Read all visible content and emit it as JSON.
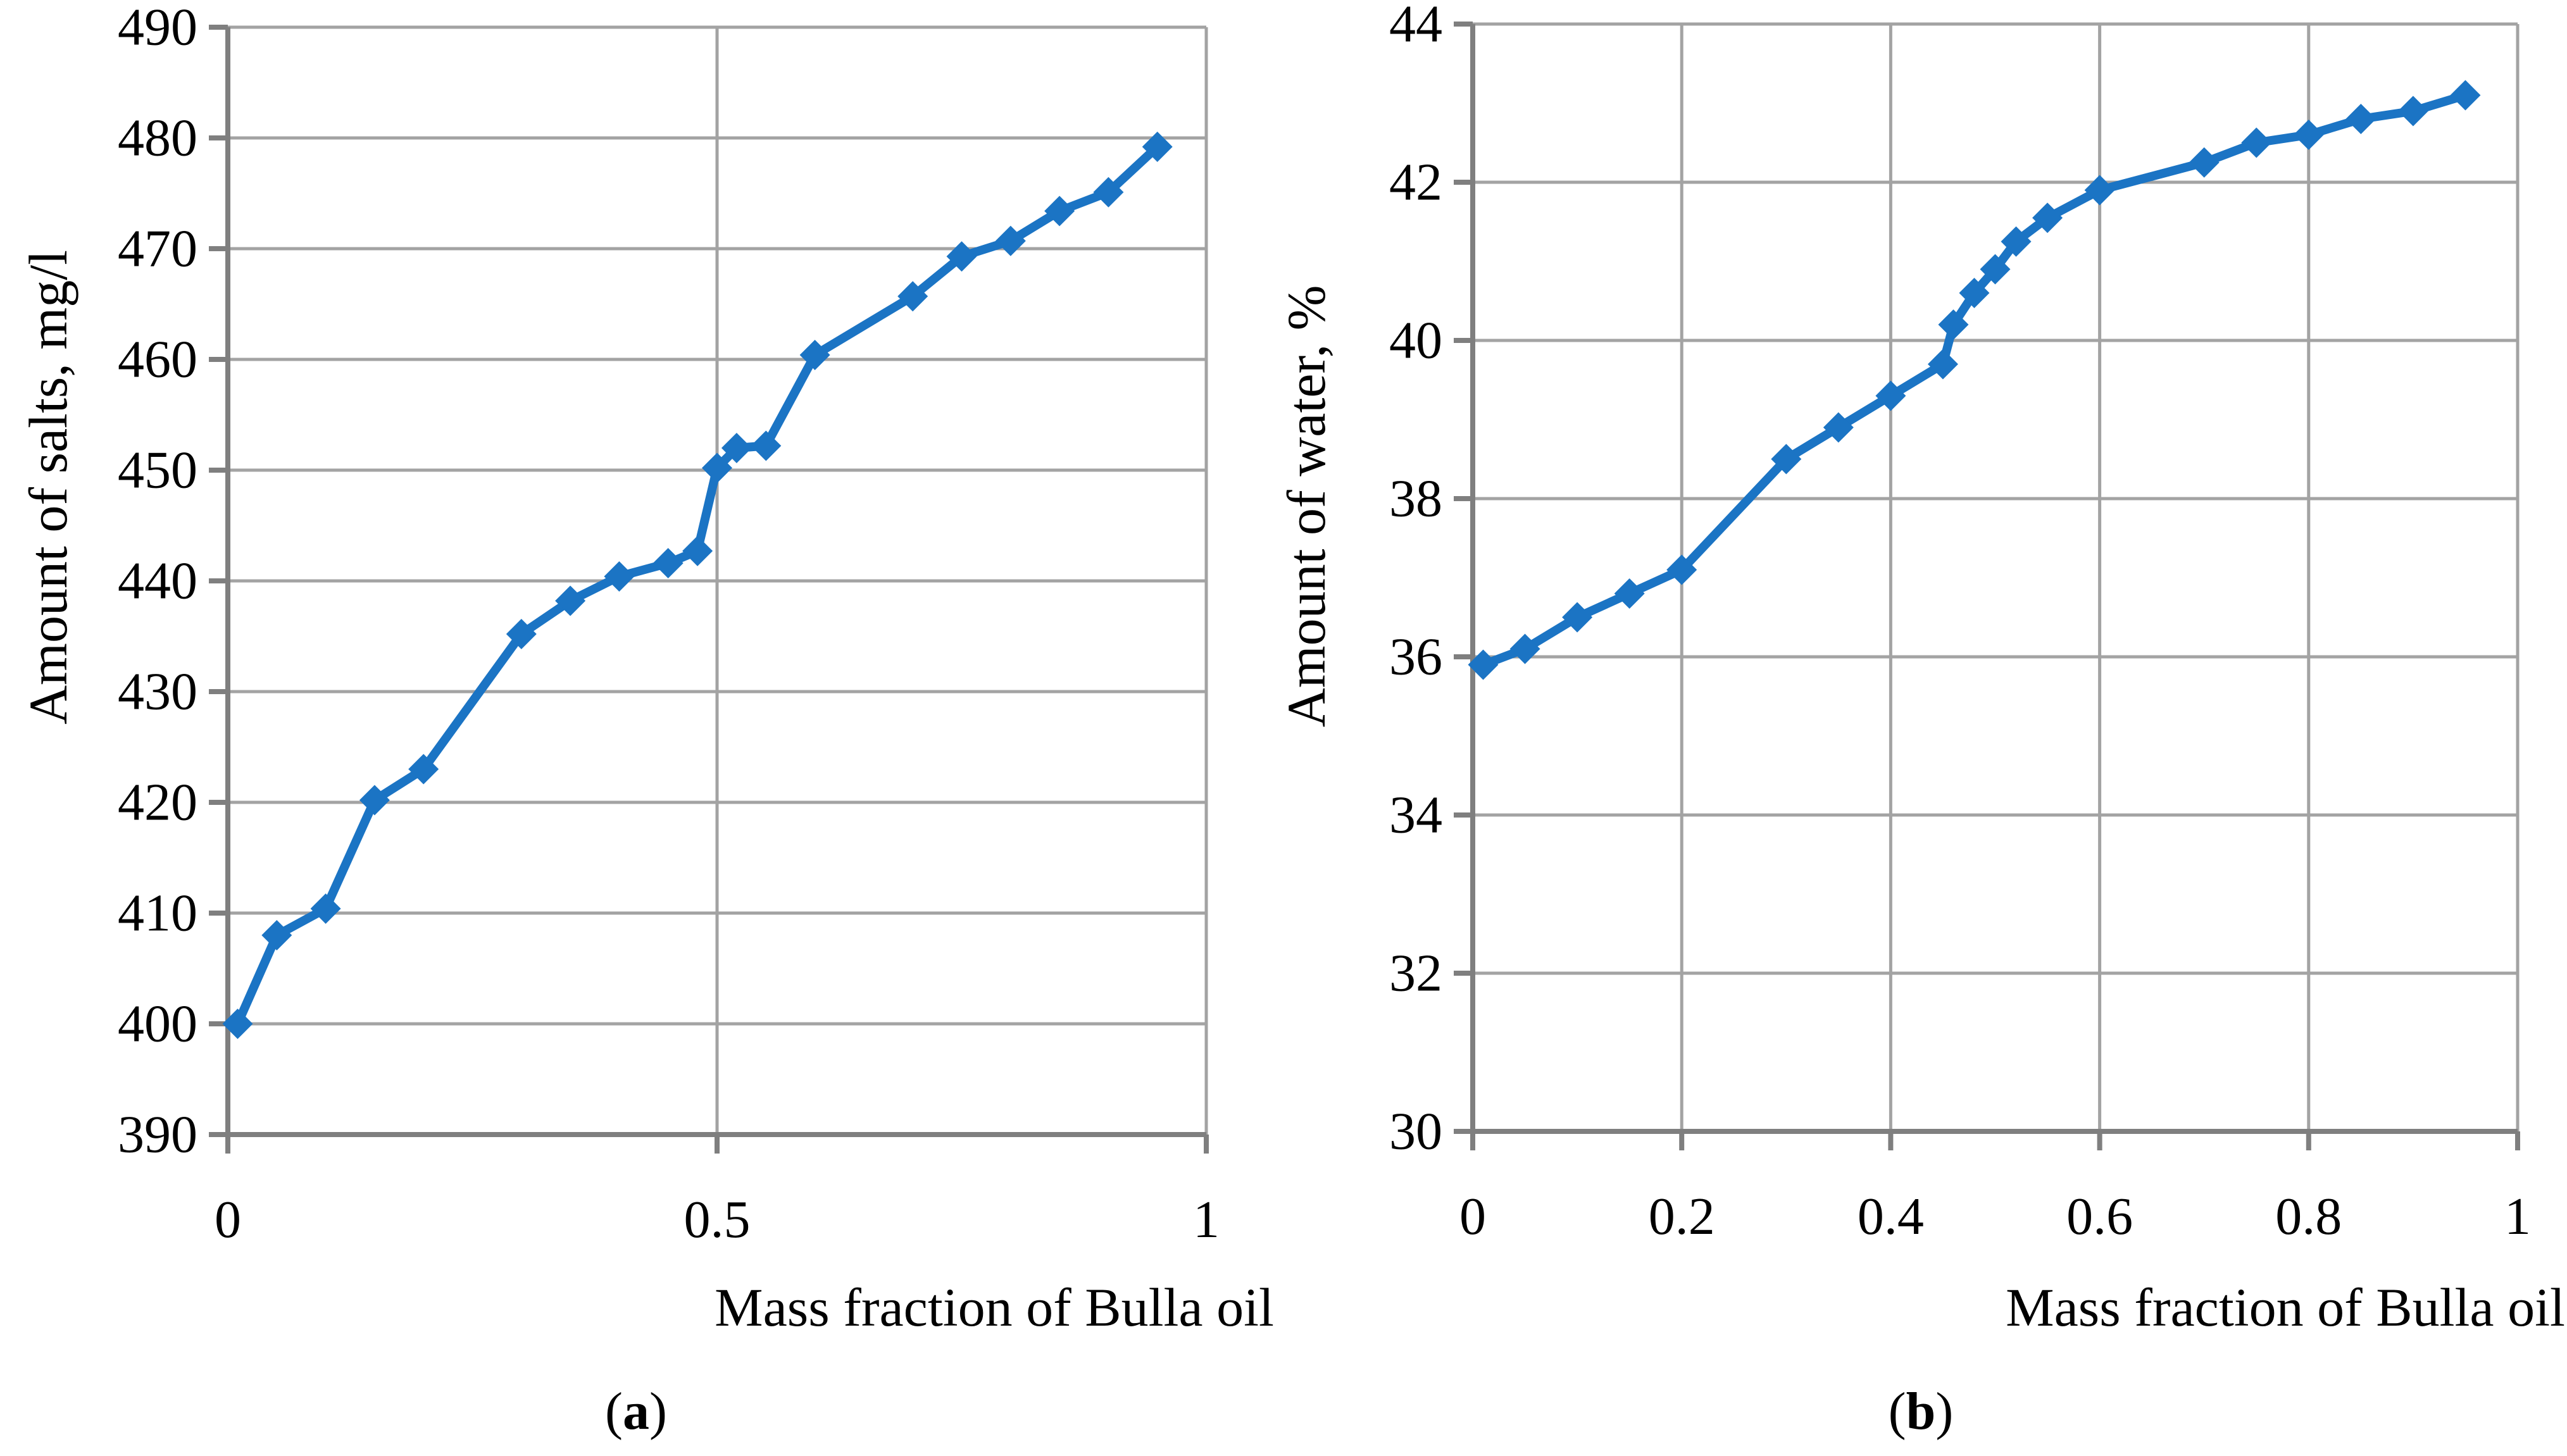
{
  "figure": {
    "background": "#ffffff",
    "series_color": "#1b74c4",
    "grid_color": "#a3a3a3",
    "axis_color": "#7f7f7f"
  },
  "chart_data": [
    {
      "panel": "a",
      "type": "line",
      "title": "",
      "xlabel": "Mass fraction of Bulla oil",
      "ylabel": "Amount of salts, mg/l",
      "caption_open": "(",
      "caption_letter": "a",
      "caption_close": ")",
      "xlim": [
        0,
        1
      ],
      "ylim": [
        390,
        490
      ],
      "y_tick_step": 10,
      "grid": true,
      "legend": false,
      "marker": "diamond",
      "y_tick_labels": [
        "390",
        "400",
        "410",
        "420",
        "430",
        "440",
        "450",
        "460",
        "470",
        "480",
        "490"
      ],
      "x_ticks": [
        {
          "value": 0,
          "label": "0"
        },
        {
          "value": 0.5,
          "label": "0.5"
        },
        {
          "value": 1,
          "label": "1"
        }
      ],
      "series": [
        {
          "name": "Amount of salts, mg/l",
          "color": "#1b74c4",
          "points": [
            [
              0.01,
              400.0
            ],
            [
              0.05,
              408.0
            ],
            [
              0.1,
              410.4
            ],
            [
              0.15,
              420.2
            ],
            [
              0.2,
              423.0
            ],
            [
              0.3,
              435.2
            ],
            [
              0.35,
              438.2
            ],
            [
              0.4,
              440.4
            ],
            [
              0.45,
              441.6
            ],
            [
              0.48,
              442.7
            ],
            [
              0.5,
              450.2
            ],
            [
              0.52,
              452.0
            ],
            [
              0.55,
              452.2
            ],
            [
              0.6,
              460.4
            ],
            [
              0.7,
              465.7
            ],
            [
              0.75,
              469.3
            ],
            [
              0.8,
              470.7
            ],
            [
              0.85,
              473.4
            ],
            [
              0.9,
              475.1
            ],
            [
              0.95,
              479.2
            ]
          ]
        }
      ]
    },
    {
      "panel": "b",
      "type": "line",
      "title": "",
      "xlabel": "Mass fraction of Bulla oil",
      "ylabel": "Amount of water, %",
      "caption_open": "(",
      "caption_letter": "b",
      "caption_close": ")",
      "xlim": [
        0,
        1
      ],
      "ylim": [
        30,
        44
      ],
      "y_tick_step": 2,
      "grid": true,
      "legend": false,
      "marker": "diamond",
      "y_tick_labels": [
        "30",
        "32",
        "34",
        "36",
        "38",
        "40",
        "42",
        "44"
      ],
      "x_ticks": [
        {
          "value": 0,
          "label": "0"
        },
        {
          "value": 0.2,
          "label": "0.2"
        },
        {
          "value": 0.4,
          "label": "0.4"
        },
        {
          "value": 0.6,
          "label": "0.6"
        },
        {
          "value": 0.8,
          "label": "0.8"
        },
        {
          "value": 1,
          "label": "1"
        }
      ],
      "series": [
        {
          "name": "Amount of water, %",
          "color": "#1b74c4",
          "points": [
            [
              0.01,
              35.9
            ],
            [
              0.05,
              36.1
            ],
            [
              0.1,
              36.5
            ],
            [
              0.15,
              36.8
            ],
            [
              0.2,
              37.1
            ],
            [
              0.3,
              38.5
            ],
            [
              0.35,
              38.9
            ],
            [
              0.4,
              39.3
            ],
            [
              0.45,
              39.7
            ],
            [
              0.46,
              40.2
            ],
            [
              0.48,
              40.6
            ],
            [
              0.5,
              40.9
            ],
            [
              0.52,
              41.25
            ],
            [
              0.55,
              41.55
            ],
            [
              0.6,
              41.9
            ],
            [
              0.7,
              42.25
            ],
            [
              0.75,
              42.5
            ],
            [
              0.8,
              42.6
            ],
            [
              0.85,
              42.8
            ],
            [
              0.9,
              42.9
            ],
            [
              0.95,
              43.1
            ]
          ]
        }
      ]
    }
  ]
}
